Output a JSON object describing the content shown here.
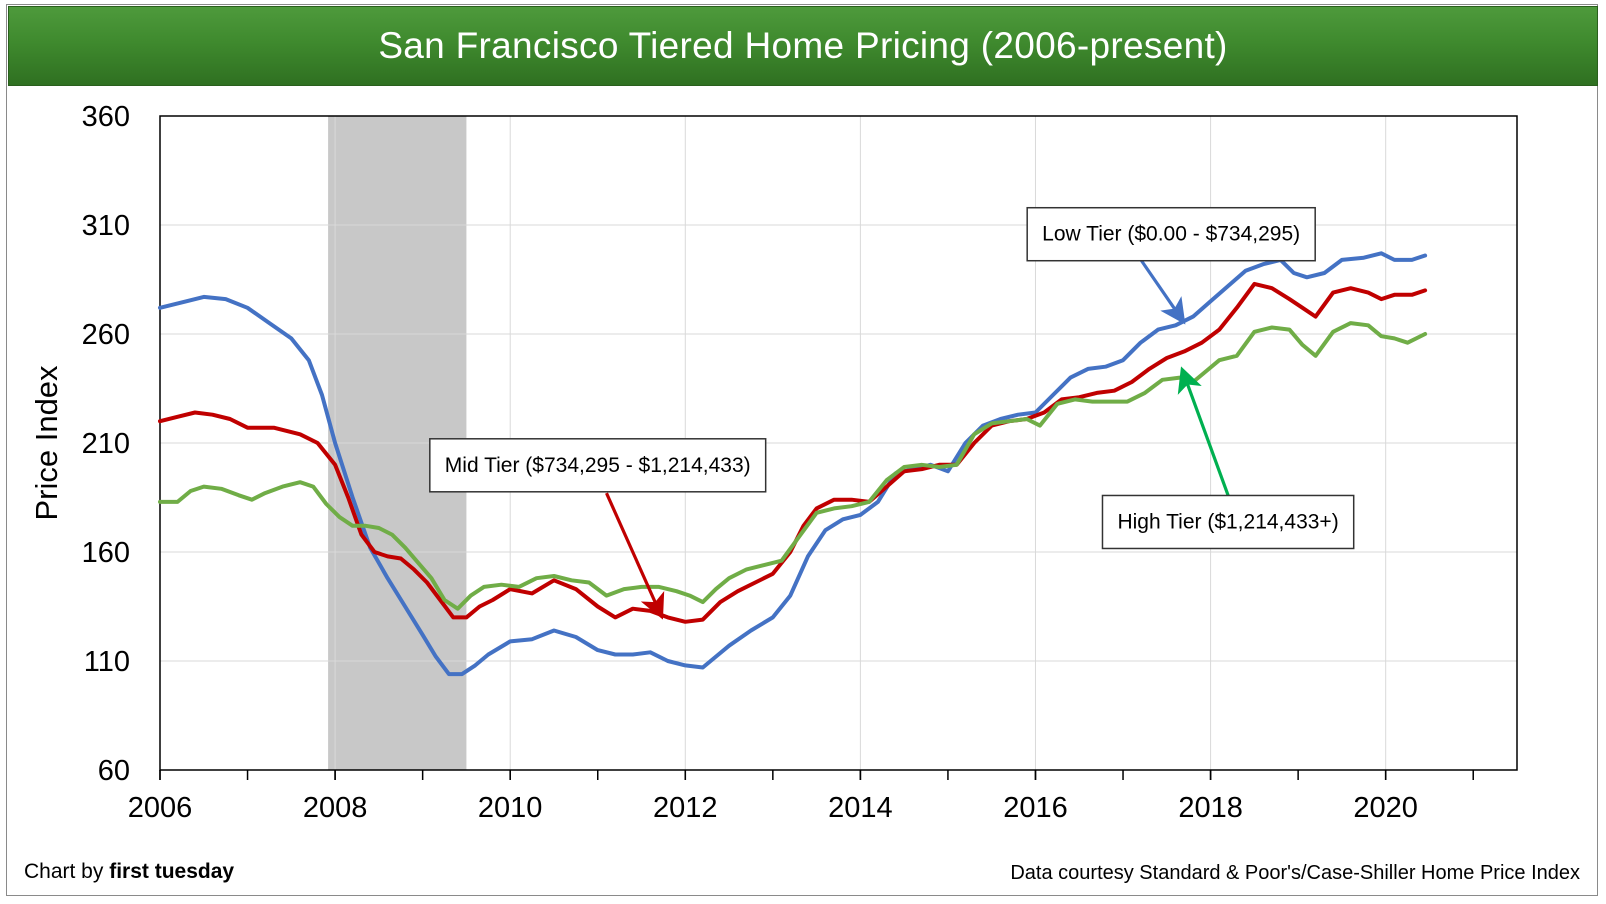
{
  "chart_data": {
    "type": "line",
    "title": "San Francisco Tiered Home Pricing (2006-present)",
    "ylabel": "Price Index",
    "xlabel": "",
    "xlim": [
      2006,
      2021.5
    ],
    "ylim": [
      60,
      360
    ],
    "x_ticks": [
      "2006",
      "2008",
      "2010",
      "2012",
      "2014",
      "2016",
      "2018",
      "2020"
    ],
    "y_ticks": [
      "60",
      "110",
      "160",
      "210",
      "260",
      "310",
      "360"
    ],
    "grid": true,
    "recession_band": {
      "from": 2007.92,
      "to": 2009.5,
      "color": "#c8c8c8"
    },
    "series": [
      {
        "name": "Low Tier ($0.00 - $734,295)",
        "color": "#4472c4",
        "points": [
          [
            2006.0,
            272
          ],
          [
            2006.3,
            275
          ],
          [
            2006.5,
            277
          ],
          [
            2006.75,
            276
          ],
          [
            2007.0,
            272
          ],
          [
            2007.25,
            265
          ],
          [
            2007.5,
            258
          ],
          [
            2007.7,
            248
          ],
          [
            2007.85,
            232
          ],
          [
            2008.0,
            210
          ],
          [
            2008.2,
            185
          ],
          [
            2008.4,
            162
          ],
          [
            2008.6,
            148
          ],
          [
            2008.8,
            135
          ],
          [
            2009.0,
            122
          ],
          [
            2009.15,
            112
          ],
          [
            2009.3,
            104
          ],
          [
            2009.45,
            104
          ],
          [
            2009.6,
            108
          ],
          [
            2009.75,
            113
          ],
          [
            2010.0,
            119
          ],
          [
            2010.25,
            120
          ],
          [
            2010.5,
            124
          ],
          [
            2010.75,
            121
          ],
          [
            2011.0,
            115
          ],
          [
            2011.2,
            113
          ],
          [
            2011.4,
            113
          ],
          [
            2011.6,
            114
          ],
          [
            2011.8,
            110
          ],
          [
            2012.0,
            108
          ],
          [
            2012.2,
            107
          ],
          [
            2012.35,
            112
          ],
          [
            2012.5,
            117
          ],
          [
            2012.75,
            124
          ],
          [
            2013.0,
            130
          ],
          [
            2013.2,
            140
          ],
          [
            2013.4,
            158
          ],
          [
            2013.6,
            170
          ],
          [
            2013.8,
            175
          ],
          [
            2014.0,
            177
          ],
          [
            2014.2,
            183
          ],
          [
            2014.4,
            196
          ],
          [
            2014.6,
            198
          ],
          [
            2014.8,
            200
          ],
          [
            2015.0,
            197
          ],
          [
            2015.2,
            210
          ],
          [
            2015.4,
            218
          ],
          [
            2015.6,
            221
          ],
          [
            2015.8,
            223
          ],
          [
            2016.0,
            224
          ],
          [
            2016.2,
            232
          ],
          [
            2016.4,
            240
          ],
          [
            2016.6,
            244
          ],
          [
            2016.8,
            245
          ],
          [
            2017.0,
            248
          ],
          [
            2017.2,
            256
          ],
          [
            2017.4,
            262
          ],
          [
            2017.6,
            264
          ],
          [
            2017.8,
            268
          ],
          [
            2018.0,
            275
          ],
          [
            2018.2,
            282
          ],
          [
            2018.4,
            289
          ],
          [
            2018.6,
            292
          ],
          [
            2018.8,
            294
          ],
          [
            2018.95,
            288
          ],
          [
            2019.1,
            286
          ],
          [
            2019.3,
            288
          ],
          [
            2019.5,
            294
          ],
          [
            2019.75,
            295
          ],
          [
            2019.95,
            297
          ],
          [
            2020.1,
            294
          ],
          [
            2020.3,
            294
          ],
          [
            2020.45,
            296
          ]
        ]
      },
      {
        "name": "Mid Tier ($734,295 - $1,214,433)",
        "color": "#c00000",
        "points": [
          [
            2006.0,
            220
          ],
          [
            2006.2,
            222
          ],
          [
            2006.4,
            224
          ],
          [
            2006.6,
            223
          ],
          [
            2006.8,
            221
          ],
          [
            2007.0,
            217
          ],
          [
            2007.3,
            217
          ],
          [
            2007.6,
            214
          ],
          [
            2007.8,
            210
          ],
          [
            2008.0,
            200
          ],
          [
            2008.15,
            185
          ],
          [
            2008.3,
            168
          ],
          [
            2008.45,
            160
          ],
          [
            2008.6,
            158
          ],
          [
            2008.75,
            157
          ],
          [
            2008.9,
            152
          ],
          [
            2009.05,
            146
          ],
          [
            2009.2,
            138
          ],
          [
            2009.35,
            130
          ],
          [
            2009.5,
            130
          ],
          [
            2009.65,
            135
          ],
          [
            2009.8,
            138
          ],
          [
            2010.0,
            143
          ],
          [
            2010.25,
            141
          ],
          [
            2010.5,
            147
          ],
          [
            2010.75,
            143
          ],
          [
            2011.0,
            135
          ],
          [
            2011.2,
            130
          ],
          [
            2011.4,
            134
          ],
          [
            2011.6,
            133
          ],
          [
            2011.8,
            130
          ],
          [
            2012.0,
            128
          ],
          [
            2012.2,
            129
          ],
          [
            2012.4,
            137
          ],
          [
            2012.6,
            142
          ],
          [
            2012.8,
            146
          ],
          [
            2013.0,
            150
          ],
          [
            2013.2,
            160
          ],
          [
            2013.35,
            172
          ],
          [
            2013.5,
            180
          ],
          [
            2013.7,
            184
          ],
          [
            2013.9,
            184
          ],
          [
            2014.1,
            183
          ],
          [
            2014.3,
            190
          ],
          [
            2014.5,
            197
          ],
          [
            2014.7,
            198
          ],
          [
            2014.9,
            200
          ],
          [
            2015.1,
            200
          ],
          [
            2015.3,
            210
          ],
          [
            2015.5,
            218
          ],
          [
            2015.7,
            220
          ],
          [
            2015.9,
            221
          ],
          [
            2016.1,
            224
          ],
          [
            2016.3,
            230
          ],
          [
            2016.5,
            231
          ],
          [
            2016.7,
            233
          ],
          [
            2016.9,
            234
          ],
          [
            2017.1,
            238
          ],
          [
            2017.3,
            244
          ],
          [
            2017.5,
            249
          ],
          [
            2017.7,
            252
          ],
          [
            2017.9,
            256
          ],
          [
            2018.1,
            262
          ],
          [
            2018.3,
            272
          ],
          [
            2018.5,
            283
          ],
          [
            2018.7,
            281
          ],
          [
            2018.9,
            276
          ],
          [
            2019.05,
            272
          ],
          [
            2019.2,
            268
          ],
          [
            2019.4,
            279
          ],
          [
            2019.6,
            281
          ],
          [
            2019.8,
            279
          ],
          [
            2019.95,
            276
          ],
          [
            2020.1,
            278
          ],
          [
            2020.3,
            278
          ],
          [
            2020.45,
            280
          ]
        ]
      },
      {
        "name": "High Tier ($1,214,433+)",
        "color": "#70ad47",
        "points": [
          [
            2006.0,
            183
          ],
          [
            2006.2,
            183
          ],
          [
            2006.35,
            188
          ],
          [
            2006.5,
            190
          ],
          [
            2006.7,
            189
          ],
          [
            2006.9,
            186
          ],
          [
            2007.05,
            184
          ],
          [
            2007.2,
            187
          ],
          [
            2007.4,
            190
          ],
          [
            2007.6,
            192
          ],
          [
            2007.75,
            190
          ],
          [
            2007.9,
            182
          ],
          [
            2008.05,
            176
          ],
          [
            2008.2,
            172
          ],
          [
            2008.35,
            172
          ],
          [
            2008.5,
            171
          ],
          [
            2008.65,
            168
          ],
          [
            2008.8,
            162
          ],
          [
            2008.95,
            155
          ],
          [
            2009.1,
            148
          ],
          [
            2009.25,
            138
          ],
          [
            2009.4,
            134
          ],
          [
            2009.55,
            140
          ],
          [
            2009.7,
            144
          ],
          [
            2009.9,
            145
          ],
          [
            2010.1,
            144
          ],
          [
            2010.3,
            148
          ],
          [
            2010.5,
            149
          ],
          [
            2010.7,
            147
          ],
          [
            2010.9,
            146
          ],
          [
            2011.1,
            140
          ],
          [
            2011.3,
            143
          ],
          [
            2011.5,
            144
          ],
          [
            2011.7,
            144
          ],
          [
            2011.9,
            142
          ],
          [
            2012.05,
            140
          ],
          [
            2012.2,
            137
          ],
          [
            2012.35,
            143
          ],
          [
            2012.5,
            148
          ],
          [
            2012.7,
            152
          ],
          [
            2012.9,
            154
          ],
          [
            2013.1,
            156
          ],
          [
            2013.3,
            167
          ],
          [
            2013.5,
            178
          ],
          [
            2013.7,
            180
          ],
          [
            2013.9,
            181
          ],
          [
            2014.1,
            183
          ],
          [
            2014.3,
            193
          ],
          [
            2014.5,
            199
          ],
          [
            2014.7,
            200
          ],
          [
            2014.9,
            199
          ],
          [
            2015.1,
            200
          ],
          [
            2015.3,
            214
          ],
          [
            2015.5,
            219
          ],
          [
            2015.7,
            220
          ],
          [
            2015.9,
            221
          ],
          [
            2016.05,
            218
          ],
          [
            2016.25,
            228
          ],
          [
            2016.45,
            230
          ],
          [
            2016.65,
            229
          ],
          [
            2016.85,
            229
          ],
          [
            2017.05,
            229
          ],
          [
            2017.25,
            233
          ],
          [
            2017.45,
            239
          ],
          [
            2017.65,
            240
          ],
          [
            2017.8,
            238
          ],
          [
            2017.95,
            243
          ],
          [
            2018.1,
            248
          ],
          [
            2018.3,
            250
          ],
          [
            2018.5,
            261
          ],
          [
            2018.7,
            263
          ],
          [
            2018.9,
            262
          ],
          [
            2019.05,
            255
          ],
          [
            2019.2,
            250
          ],
          [
            2019.4,
            261
          ],
          [
            2019.6,
            265
          ],
          [
            2019.8,
            264
          ],
          [
            2019.95,
            259
          ],
          [
            2020.1,
            258
          ],
          [
            2020.25,
            256
          ],
          [
            2020.45,
            260
          ]
        ]
      }
    ],
    "annotations": [
      {
        "text": "Low Tier ($0.00 - $734,295)",
        "series": 0,
        "arrow_to": [
          2017.65,
          268
        ],
        "arrow_from": [
          2017.05,
          303
        ],
        "box_center": [
          2017.55,
          306
        ]
      },
      {
        "text": "Mid Tier ($734,295 - $1,214,433)",
        "series": 1,
        "arrow_to": [
          2011.7,
          133
        ],
        "arrow_from": [
          2011.1,
          187
        ],
        "box_center": [
          2011.0,
          200
        ]
      },
      {
        "text": "High Tier ($1,214,433+)",
        "series": 2,
        "arrow_to": [
          2017.7,
          241
        ],
        "arrow_from": [
          2018.2,
          186
        ],
        "box_center": [
          2018.2,
          174
        ]
      }
    ]
  },
  "footer": {
    "credit_prefix": "Chart by ",
    "credit_brand": "first tuesday",
    "source": "Data courtesy Standard & Poor's/Case-Shiller Home Price Index"
  }
}
